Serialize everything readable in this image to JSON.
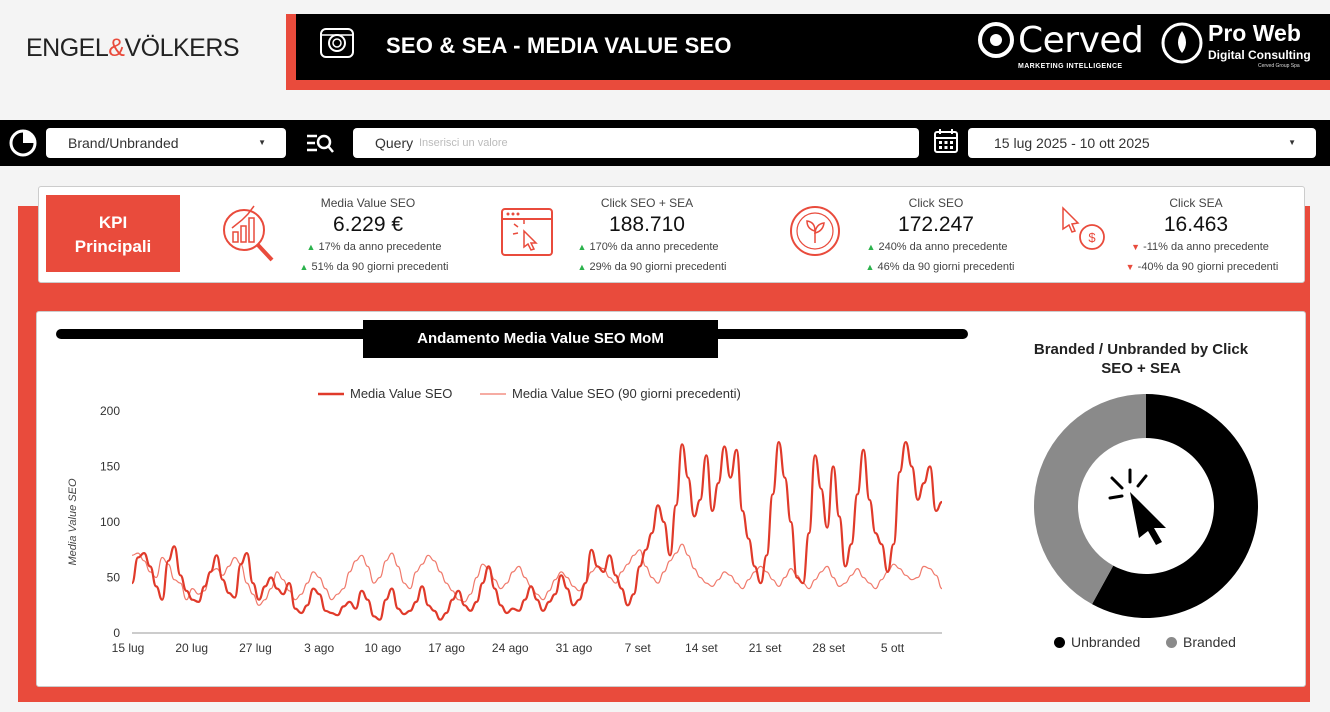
{
  "header": {
    "brand_left": "ENGEL",
    "brand_amp": "&",
    "brand_right": "VÖLKERS",
    "title": "SEO & SEA - MEDIA VALUE SEO",
    "partner1_name": "Cerved",
    "partner1_sub": "MARKETING INTELLIGENCE",
    "partner2_name": "Pro Web",
    "partner2_sub": "Digital Consulting",
    "partner2_tag": "Cerved Group Spa"
  },
  "filters": {
    "brand_select": "Brand/Unbranded",
    "query_label": "Query",
    "query_placeholder": "Inserisci un valore",
    "date_range": "15 lug 2025 - 10 ott 2025"
  },
  "kpi": {
    "section_label_1": "KPI",
    "section_label_2": "Principali",
    "cards": [
      {
        "title": "Media Value SEO",
        "value": "6.229 €",
        "c1_arrow": "▲",
        "c1": "17% da anno precedente",
        "c2_arrow": "▲",
        "c2": "51% da 90 giorni precedenti",
        "trend": "up",
        "icon": "chart-search-icon"
      },
      {
        "title": "Click SEO + SEA",
        "value": "188.710",
        "c1_arrow": "▲",
        "c1": "170% da anno precedente",
        "c2_arrow": "▲",
        "c2": "29% da 90 giorni precedenti",
        "trend": "up",
        "icon": "browser-click-icon"
      },
      {
        "title": "Click SEO",
        "value": "172.247",
        "c1_arrow": "▲",
        "c1": "240% da anno precedente",
        "c2_arrow": "▲",
        "c2": "46% da 90 giorni precedenti",
        "trend": "up",
        "icon": "leaf-circle-icon"
      },
      {
        "title": "Click SEA",
        "value": "16.463",
        "c1_arrow": "▼",
        "c1": "-11% da anno precedente",
        "c2_arrow": "▼",
        "c2": "-40% da 90 giorni precedenti",
        "trend": "down",
        "icon": "cursor-dollar-icon"
      }
    ]
  },
  "chart_section": {
    "title": "Andamento Media Value SEO MoM"
  },
  "chart_data": [
    {
      "type": "line",
      "title": "Andamento Media Value SEO MoM",
      "ylabel": "Media Value SEO",
      "xlabel": "",
      "ylim": [
        0,
        200
      ],
      "yticks": [
        "0",
        "50",
        "100",
        "150",
        "200"
      ],
      "x_tick_labels": [
        "15 lug",
        "20 lug",
        "27 lug",
        "3 ago",
        "10 ago",
        "17 ago",
        "24 ago",
        "31 ago",
        "7 set",
        "14 set",
        "21 set",
        "28 set",
        "5 ott"
      ],
      "legend_placement": "top",
      "grid": false,
      "series": [
        {
          "name": "Media Value SEO",
          "color": "#e03a2a",
          "values": [
            45,
            68,
            72,
            60,
            42,
            30,
            65,
            78,
            52,
            38,
            30,
            28,
            42,
            55,
            70,
            48,
            36,
            32,
            62,
            72,
            45,
            30,
            42,
            50,
            40,
            35,
            45,
            22,
            18,
            25,
            40,
            35,
            20,
            18,
            16,
            24,
            28,
            22,
            38,
            30,
            15,
            12,
            30,
            40,
            22,
            17,
            20,
            28,
            42,
            25,
            20,
            12,
            18,
            30,
            38,
            25,
            20,
            28,
            45,
            60,
            40,
            25,
            18,
            22,
            20,
            30,
            42,
            30,
            20,
            28,
            35,
            52,
            40,
            25,
            30,
            45,
            75,
            60,
            55,
            70,
            52,
            40,
            25,
            35,
            60,
            75,
            90,
            115,
            100,
            70,
            115,
            170,
            140,
            105,
            120,
            160,
            110,
            135,
            168,
            140,
            165,
            110,
            85,
            60,
            45,
            70,
            125,
            172,
            140,
            100,
            50,
            45,
            90,
            160,
            130,
            95,
            150,
            105,
            60,
            80,
            125,
            165,
            120,
            90,
            80,
            55,
            80,
            145,
            172,
            150,
            120,
            135,
            150,
            110,
            118
          ]
        },
        {
          "name": "Media Value SEO (90 giorni precedenti)",
          "color": "#f07a6c",
          "values": [
            70,
            72,
            65,
            55,
            50,
            68,
            62,
            48,
            45,
            30,
            40,
            35,
            38,
            55,
            58,
            52,
            60,
            68,
            62,
            45,
            35,
            25,
            30,
            40,
            55,
            48,
            38,
            30,
            35,
            45,
            55,
            50,
            40,
            30,
            35,
            40,
            55,
            65,
            70,
            60,
            45,
            50,
            65,
            72,
            60,
            45,
            40,
            55,
            62,
            70,
            65,
            55,
            45,
            38,
            30,
            28,
            35,
            50,
            62,
            58,
            48,
            40,
            45,
            55,
            60,
            50,
            42,
            35,
            30,
            38,
            48,
            55,
            50,
            42,
            38,
            45,
            55,
            60,
            58,
            50,
            45,
            55,
            62,
            70,
            75,
            60,
            50,
            45,
            55,
            65,
            72,
            80,
            70,
            58,
            50,
            45,
            42,
            48,
            55,
            52,
            45,
            40,
            48,
            55,
            60,
            55,
            48,
            42,
            50,
            58,
            52,
            45,
            40,
            48,
            55,
            60,
            50,
            42,
            45,
            52,
            58,
            50,
            45,
            40,
            48,
            55,
            62,
            58,
            52,
            48,
            50,
            60,
            58,
            52,
            40
          ]
        }
      ]
    },
    {
      "type": "pie",
      "title": "Branded / Unbranded by Click SEO + SEA",
      "categories": [
        "Unbranded",
        "Branded"
      ],
      "values": [
        58,
        42
      ],
      "colors": [
        "#000000",
        "#8a8a8a"
      ],
      "legend_placement": "bottom"
    }
  ]
}
